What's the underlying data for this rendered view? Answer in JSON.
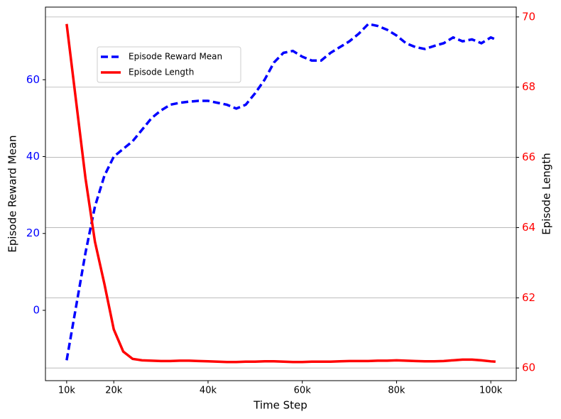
{
  "chart_data": {
    "type": "line",
    "xlabel": "Time Step",
    "ylabel": "Episode Reward Mean",
    "y2label": "Episode Length",
    "x": [
      10000,
      12000,
      14000,
      16000,
      18000,
      20000,
      22000,
      24000,
      26000,
      28000,
      30000,
      32000,
      34000,
      36000,
      38000,
      40000,
      42000,
      44000,
      46000,
      48000,
      50000,
      52000,
      54000,
      56000,
      58000,
      60000,
      62000,
      64000,
      66000,
      68000,
      70000,
      72000,
      74000,
      76000,
      78000,
      80000,
      82000,
      84000,
      86000,
      88000,
      90000,
      92000,
      94000,
      96000,
      98000,
      100000,
      101000
    ],
    "series": [
      {
        "name": "Episode Reward Mean",
        "color": "#0000ff",
        "linestyle": "dashed",
        "axis": "y",
        "values": [
          -13,
          1,
          15,
          27,
          35,
          40,
          42,
          44,
          47,
          50,
          52,
          53.5,
          54,
          54.3,
          54.5,
          54.5,
          54,
          53.5,
          52.5,
          53.5,
          56.5,
          60,
          64.5,
          67,
          67.5,
          66,
          65,
          65,
          67,
          68.5,
          70,
          72,
          74.5,
          74,
          73,
          71.5,
          69.5,
          68.5,
          68,
          68.8,
          69.5,
          71,
          70,
          70.5,
          69.5,
          71,
          70.5
        ]
      },
      {
        "name": "Episode Length",
        "color": "#ff0000",
        "linestyle": "solid",
        "axis": "y2",
        "values": [
          69.8,
          67.6,
          65.4,
          63.6,
          62.4,
          61.1,
          60.47,
          60.26,
          60.22,
          60.21,
          60.2,
          60.2,
          60.21,
          60.21,
          60.2,
          60.19,
          60.18,
          60.17,
          60.17,
          60.18,
          60.18,
          60.19,
          60.19,
          60.18,
          60.17,
          60.17,
          60.18,
          60.18,
          60.18,
          60.19,
          60.2,
          60.2,
          60.2,
          60.21,
          60.21,
          60.22,
          60.21,
          60.2,
          60.19,
          60.19,
          60.2,
          60.22,
          60.24,
          60.24,
          60.22,
          60.19,
          60.18
        ]
      }
    ],
    "xlim": [
      5500,
      105400
    ],
    "xticks": [
      {
        "value": 10000,
        "label": "10k"
      },
      {
        "value": 20000,
        "label": "20k"
      },
      {
        "value": 40000,
        "label": "40k"
      },
      {
        "value": 60000,
        "label": "60k"
      },
      {
        "value": 80000,
        "label": "80k"
      },
      {
        "value": 100000,
        "label": "100k"
      }
    ],
    "ylim": [
      -18.3,
      78.9
    ],
    "yticks": [
      0,
      20,
      40,
      60
    ],
    "ytick_color": "#0000ff",
    "y2lim": [
      59.64,
      70.28
    ],
    "y2ticks": [
      60,
      62,
      64,
      66,
      68,
      70
    ],
    "y2tick_color": "#ff0000",
    "grid": "y2",
    "legend": "upper left"
  }
}
